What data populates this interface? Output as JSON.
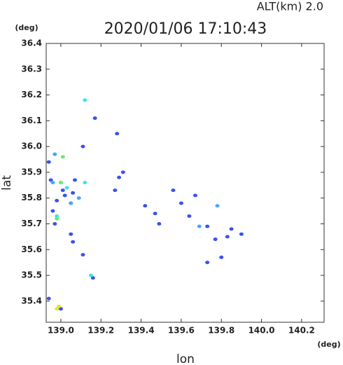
{
  "chart_data": {
    "type": "scatter",
    "title": "2020/01/06 17:10:43",
    "subtitle": "ALT(km) 2.0",
    "x_label": "lon",
    "y_label": "lat",
    "x_unit": "(deg)",
    "y_unit": "(deg)",
    "xlim": [
      138.927,
      140.312
    ],
    "ylim": [
      35.318,
      36.4
    ],
    "xticks": [
      {
        "value": 139,
        "label": "139.0"
      },
      139.2,
      139.4,
      139.6,
      139.8,
      {
        "value": 140,
        "label": "140.0"
      },
      140.2
    ],
    "yticks": [
      {
        "value": 35.4,
        "label": "35.4"
      },
      35.5,
      35.6,
      35.7,
      35.8,
      35.9,
      {
        "value": 36,
        "label": "36.0"
      },
      36.1,
      36.2,
      36.3,
      36.4
    ],
    "series": [
      {
        "color": "#3a52f0",
        "x": [
          138.94,
          138.95,
          138.96,
          138.97,
          138.98,
          139.01,
          139.02,
          139.05,
          139.05,
          139.06,
          139.07,
          139.06,
          139.11,
          139.11,
          139.16,
          138.94,
          139.0,
          139.17,
          139.28,
          139.31,
          139.29,
          139.27,
          139.42,
          139.47,
          139.49,
          139.56,
          139.6,
          139.64,
          139.67,
          139.73,
          139.77,
          139.8,
          139.83,
          139.85,
          139.9,
          139.73
        ],
        "values": [
          35.94,
          35.87,
          35.75,
          35.7,
          35.79,
          35.83,
          35.81,
          35.78,
          35.66,
          35.63,
          35.87,
          35.82,
          36.0,
          35.58,
          35.49,
          35.41,
          35.37,
          36.11,
          36.05,
          35.9,
          35.88,
          35.83,
          35.77,
          35.74,
          35.7,
          35.83,
          35.78,
          35.73,
          35.81,
          35.69,
          35.64,
          35.57,
          35.65,
          35.68,
          35.66,
          35.55
        ]
      },
      {
        "color": "#44a8ff",
        "x": [
          139.05,
          138.96,
          139.09,
          139.0,
          139.69,
          139.78,
          138.97
        ],
        "values": [
          35.78,
          35.86,
          35.8,
          35.86,
          35.69,
          35.77,
          35.97
        ]
      },
      {
        "color": "#44e0e8",
        "x": [
          139.12,
          138.98,
          139.15,
          139.03,
          139.12
        ],
        "values": [
          36.18,
          35.73,
          35.5,
          35.84,
          35.86
        ]
      },
      {
        "color": "#66ee66",
        "x": [
          139.01,
          139.0,
          138.98
        ],
        "values": [
          35.96,
          35.86,
          35.72
        ]
      },
      {
        "color": "#dde833",
        "x": [
          138.98,
          138.99
        ],
        "values": [
          35.37,
          35.38
        ]
      }
    ]
  }
}
